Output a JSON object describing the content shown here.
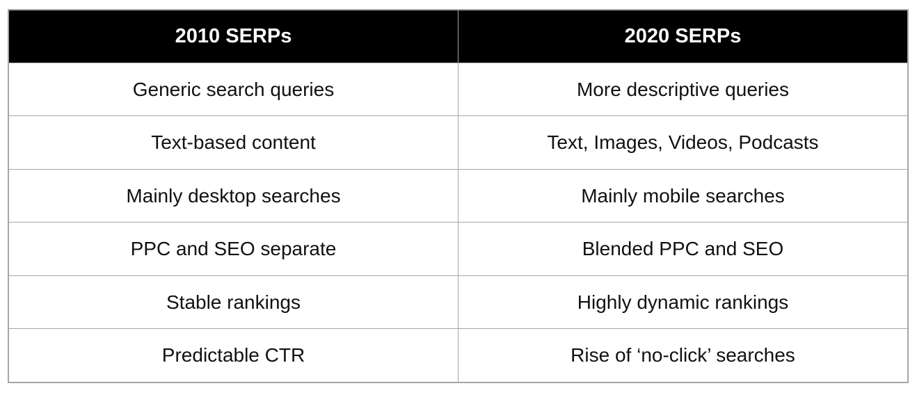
{
  "table": {
    "headers": [
      "2010 SERPs",
      "2020 SERPs"
    ],
    "rows": [
      [
        "Generic search queries",
        "More descriptive queries"
      ],
      [
        "Text-based content",
        "Text, Images, Videos, Podcasts"
      ],
      [
        "Mainly desktop searches",
        "Mainly mobile searches"
      ],
      [
        "PPC and SEO separate",
        "Blended PPC and SEO"
      ],
      [
        "Stable rankings",
        "Highly dynamic rankings"
      ],
      [
        "Predictable CTR",
        "Rise of ‘no-click’ searches"
      ]
    ]
  },
  "colors": {
    "header_background": "#000000",
    "header_text": "#ffffff",
    "body_text": "#111111",
    "border": "#a6a6a6",
    "page_background": "#ffffff"
  },
  "chart_data": {
    "type": "table",
    "title": "2010 SERPs vs 2020 SERPs comparison",
    "columns": [
      "2010 SERPs",
      "2020 SERPs"
    ],
    "rows": [
      [
        "Generic search queries",
        "More descriptive queries"
      ],
      [
        "Text-based content",
        "Text, Images, Videos, Podcasts"
      ],
      [
        "Mainly desktop searches",
        "Mainly mobile searches"
      ],
      [
        "PPC and SEO separate",
        "Blended PPC and SEO"
      ],
      [
        "Stable rankings",
        "Highly dynamic rankings"
      ],
      [
        "Predictable CTR",
        "Rise of ‘no-click’ searches"
      ]
    ],
    "layout": {
      "header_style": "black background, white bold centered text",
      "body_style": "white background, black centered text",
      "grid": "on",
      "border_color": "#a6a6a6"
    }
  }
}
